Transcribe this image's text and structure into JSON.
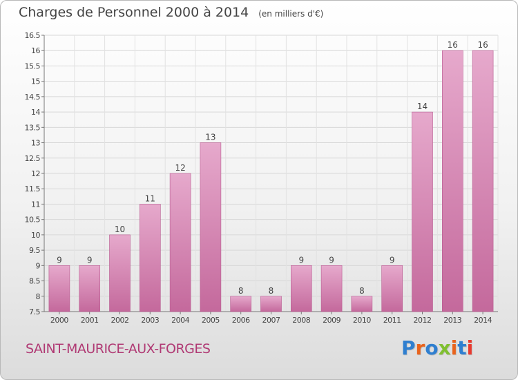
{
  "header": {
    "title": "Charges de Personnel 2000 à 2014",
    "unit": "(en milliers d'€)"
  },
  "footer": {
    "town": "SAINT-MAURICE-AUX-FORGES",
    "logo_text": "Proxiti",
    "logo_colors": [
      "#2f7fd0",
      "#e9631c",
      "#2f7fd0",
      "#7fbf2f",
      "#e9631c",
      "#2f7fd0",
      "#e93a2f"
    ]
  },
  "chart_data": {
    "type": "bar",
    "title": "Charges de Personnel 2000 à 2014",
    "subtitle": "(en milliers d'€)",
    "categories": [
      "2000",
      "2001",
      "2002",
      "2003",
      "2004",
      "2005",
      "2006",
      "2007",
      "2008",
      "2009",
      "2010",
      "2011",
      "2012",
      "2013",
      "2014"
    ],
    "values": [
      9,
      9,
      10,
      11,
      12,
      13,
      8,
      8,
      9,
      9,
      8,
      9,
      14,
      16,
      16
    ],
    "data_labels": [
      "9",
      "9",
      "10",
      "11",
      "12",
      "13",
      "8",
      "8",
      "9",
      "9",
      "8",
      "9",
      "14",
      "16",
      "16"
    ],
    "ylim": [
      7.5,
      16.5
    ],
    "yticks": [
      "7.5",
      "8",
      "8.5",
      "9",
      "9.5",
      "10",
      "10.5",
      "11",
      "11.5",
      "12",
      "12.5",
      "13",
      "13.5",
      "14",
      "14.5",
      "15",
      "15.5",
      "16",
      "16.5"
    ],
    "grid": true,
    "bar_color": "#c4699c",
    "bar_color_light": "#e6a9cc"
  }
}
